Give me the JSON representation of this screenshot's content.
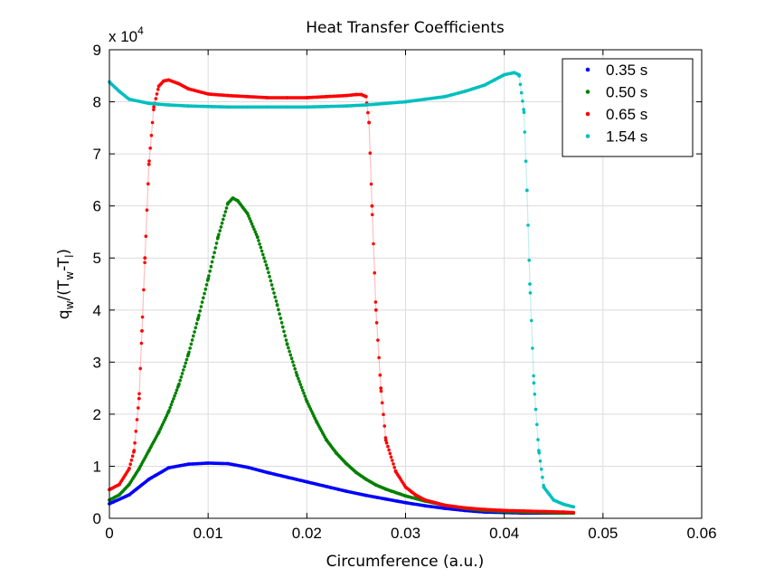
{
  "chart_data": {
    "type": "scatter",
    "title": "Heat Transfer Coefficients",
    "xlabel": "Circumference (a.u.)",
    "ylabel": {
      "base": "q",
      "sub1": "w",
      "mid": "/(T",
      "sub2": "w",
      "dash": "-T",
      "sub3": "l",
      "end": ")"
    },
    "exponent_label": {
      "base": "x 10",
      "power": "4"
    },
    "xlim": [
      0,
      0.06
    ],
    "ylim": [
      0,
      9
    ],
    "xticks": [
      0,
      0.01,
      0.02,
      0.03,
      0.04,
      0.05,
      0.06
    ],
    "xtick_labels": [
      "0",
      "0.01",
      "0.02",
      "0.03",
      "0.04",
      "0.05",
      "0.06"
    ],
    "yticks": [
      0,
      1,
      2,
      3,
      4,
      5,
      6,
      7,
      8,
      9
    ],
    "ytick_labels": [
      "0",
      "1",
      "2",
      "3",
      "4",
      "5",
      "6",
      "7",
      "8",
      "9"
    ],
    "y_units": "x 10^4",
    "grid": true,
    "legend_position": "top-right",
    "series": [
      {
        "name": "0.35 s",
        "color": "#0000ff",
        "x": [
          0,
          0.002,
          0.004,
          0.006,
          0.008,
          0.01,
          0.012,
          0.014,
          0.016,
          0.018,
          0.02,
          0.022,
          0.024,
          0.026,
          0.028,
          0.03,
          0.032,
          0.034,
          0.036,
          0.038,
          0.04,
          0.042,
          0.044,
          0.046,
          0.047
        ],
        "y": [
          0.28,
          0.45,
          0.75,
          0.97,
          1.04,
          1.06,
          1.05,
          0.98,
          0.88,
          0.79,
          0.7,
          0.61,
          0.52,
          0.44,
          0.37,
          0.3,
          0.24,
          0.19,
          0.15,
          0.12,
          0.11,
          0.1,
          0.1,
          0.1,
          0.1
        ]
      },
      {
        "name": "0.50 s",
        "color": "#008000",
        "x": [
          0,
          0.001,
          0.002,
          0.003,
          0.004,
          0.005,
          0.006,
          0.007,
          0.008,
          0.009,
          0.01,
          0.011,
          0.012,
          0.0125,
          0.013,
          0.014,
          0.015,
          0.016,
          0.017,
          0.018,
          0.019,
          0.02,
          0.021,
          0.022,
          0.023,
          0.024,
          0.025,
          0.026,
          0.027,
          0.028,
          0.03,
          0.032,
          0.034,
          0.036,
          0.038,
          0.04,
          0.042,
          0.044,
          0.046,
          0.047
        ],
        "y": [
          0.35,
          0.45,
          0.65,
          0.95,
          1.3,
          1.65,
          2.05,
          2.55,
          3.15,
          3.85,
          4.6,
          5.4,
          6.05,
          6.15,
          6.1,
          5.85,
          5.4,
          4.8,
          4.1,
          3.35,
          2.75,
          2.25,
          1.85,
          1.5,
          1.25,
          1.05,
          0.88,
          0.75,
          0.64,
          0.56,
          0.43,
          0.33,
          0.25,
          0.19,
          0.15,
          0.13,
          0.12,
          0.11,
          0.1,
          0.1
        ]
      },
      {
        "name": "0.65 s",
        "color": "#ff0000",
        "x": [
          0,
          0.001,
          0.002,
          0.0025,
          0.003,
          0.0033,
          0.0036,
          0.004,
          0.0045,
          0.005,
          0.0055,
          0.006,
          0.007,
          0.008,
          0.01,
          0.012,
          0.014,
          0.016,
          0.018,
          0.02,
          0.022,
          0.024,
          0.025,
          0.0255,
          0.026,
          0.0263,
          0.0266,
          0.027,
          0.0275,
          0.028,
          0.029,
          0.03,
          0.031,
          0.032,
          0.034,
          0.036,
          0.038,
          0.04,
          0.042,
          0.044,
          0.046,
          0.047
        ],
        "y": [
          0.55,
          0.65,
          0.95,
          1.3,
          2.3,
          3.6,
          5.0,
          6.8,
          7.9,
          8.3,
          8.4,
          8.42,
          8.35,
          8.25,
          8.15,
          8.12,
          8.1,
          8.08,
          8.08,
          8.08,
          8.1,
          8.12,
          8.14,
          8.14,
          8.1,
          7.6,
          6.0,
          4.0,
          2.5,
          1.5,
          0.9,
          0.6,
          0.45,
          0.35,
          0.25,
          0.2,
          0.17,
          0.15,
          0.14,
          0.13,
          0.12,
          0.11
        ]
      },
      {
        "name": "1.54 s",
        "color": "#00bfbf",
        "x": [
          0,
          0.001,
          0.002,
          0.004,
          0.006,
          0.008,
          0.01,
          0.012,
          0.014,
          0.016,
          0.018,
          0.02,
          0.022,
          0.024,
          0.026,
          0.028,
          0.03,
          0.032,
          0.034,
          0.036,
          0.038,
          0.039,
          0.04,
          0.041,
          0.0415,
          0.042,
          0.0423,
          0.0426,
          0.043,
          0.0435,
          0.044,
          0.045,
          0.046,
          0.047
        ],
        "y": [
          8.38,
          8.2,
          8.05,
          7.97,
          7.94,
          7.92,
          7.91,
          7.9,
          7.9,
          7.9,
          7.9,
          7.9,
          7.91,
          7.92,
          7.94,
          7.97,
          8.0,
          8.05,
          8.1,
          8.2,
          8.32,
          8.42,
          8.52,
          8.56,
          8.52,
          7.8,
          6.3,
          4.5,
          2.6,
          1.3,
          0.6,
          0.35,
          0.27,
          0.22
        ]
      }
    ]
  }
}
